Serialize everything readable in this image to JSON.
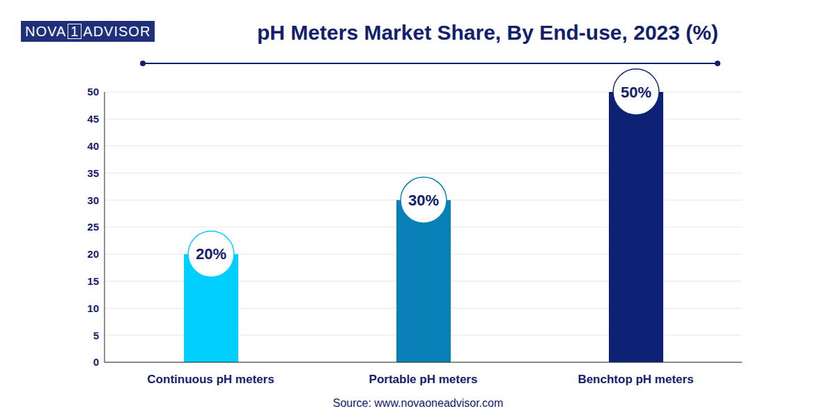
{
  "chart_data": {
    "type": "bar",
    "title": "pH Meters Market Share, By End-use, 2023 (%)",
    "logo": [
      "NOVA",
      "1",
      "ADVISOR"
    ],
    "source": "Source: www.novaoneadvisor.com",
    "categories": [
      "Continuous pH meters",
      "Portable pH meters",
      "Benchtop pH meters"
    ],
    "values": [
      20,
      30,
      50
    ],
    "value_labels": [
      "20%",
      "30%",
      "50%"
    ],
    "colors": [
      "#00cfff",
      "#0a80b8",
      "#0d2275"
    ],
    "ylim": [
      0,
      50
    ],
    "yticks": [
      0,
      5,
      10,
      15,
      20,
      25,
      30,
      35,
      40,
      45,
      50
    ],
    "grid": true,
    "data_labels": true
  }
}
